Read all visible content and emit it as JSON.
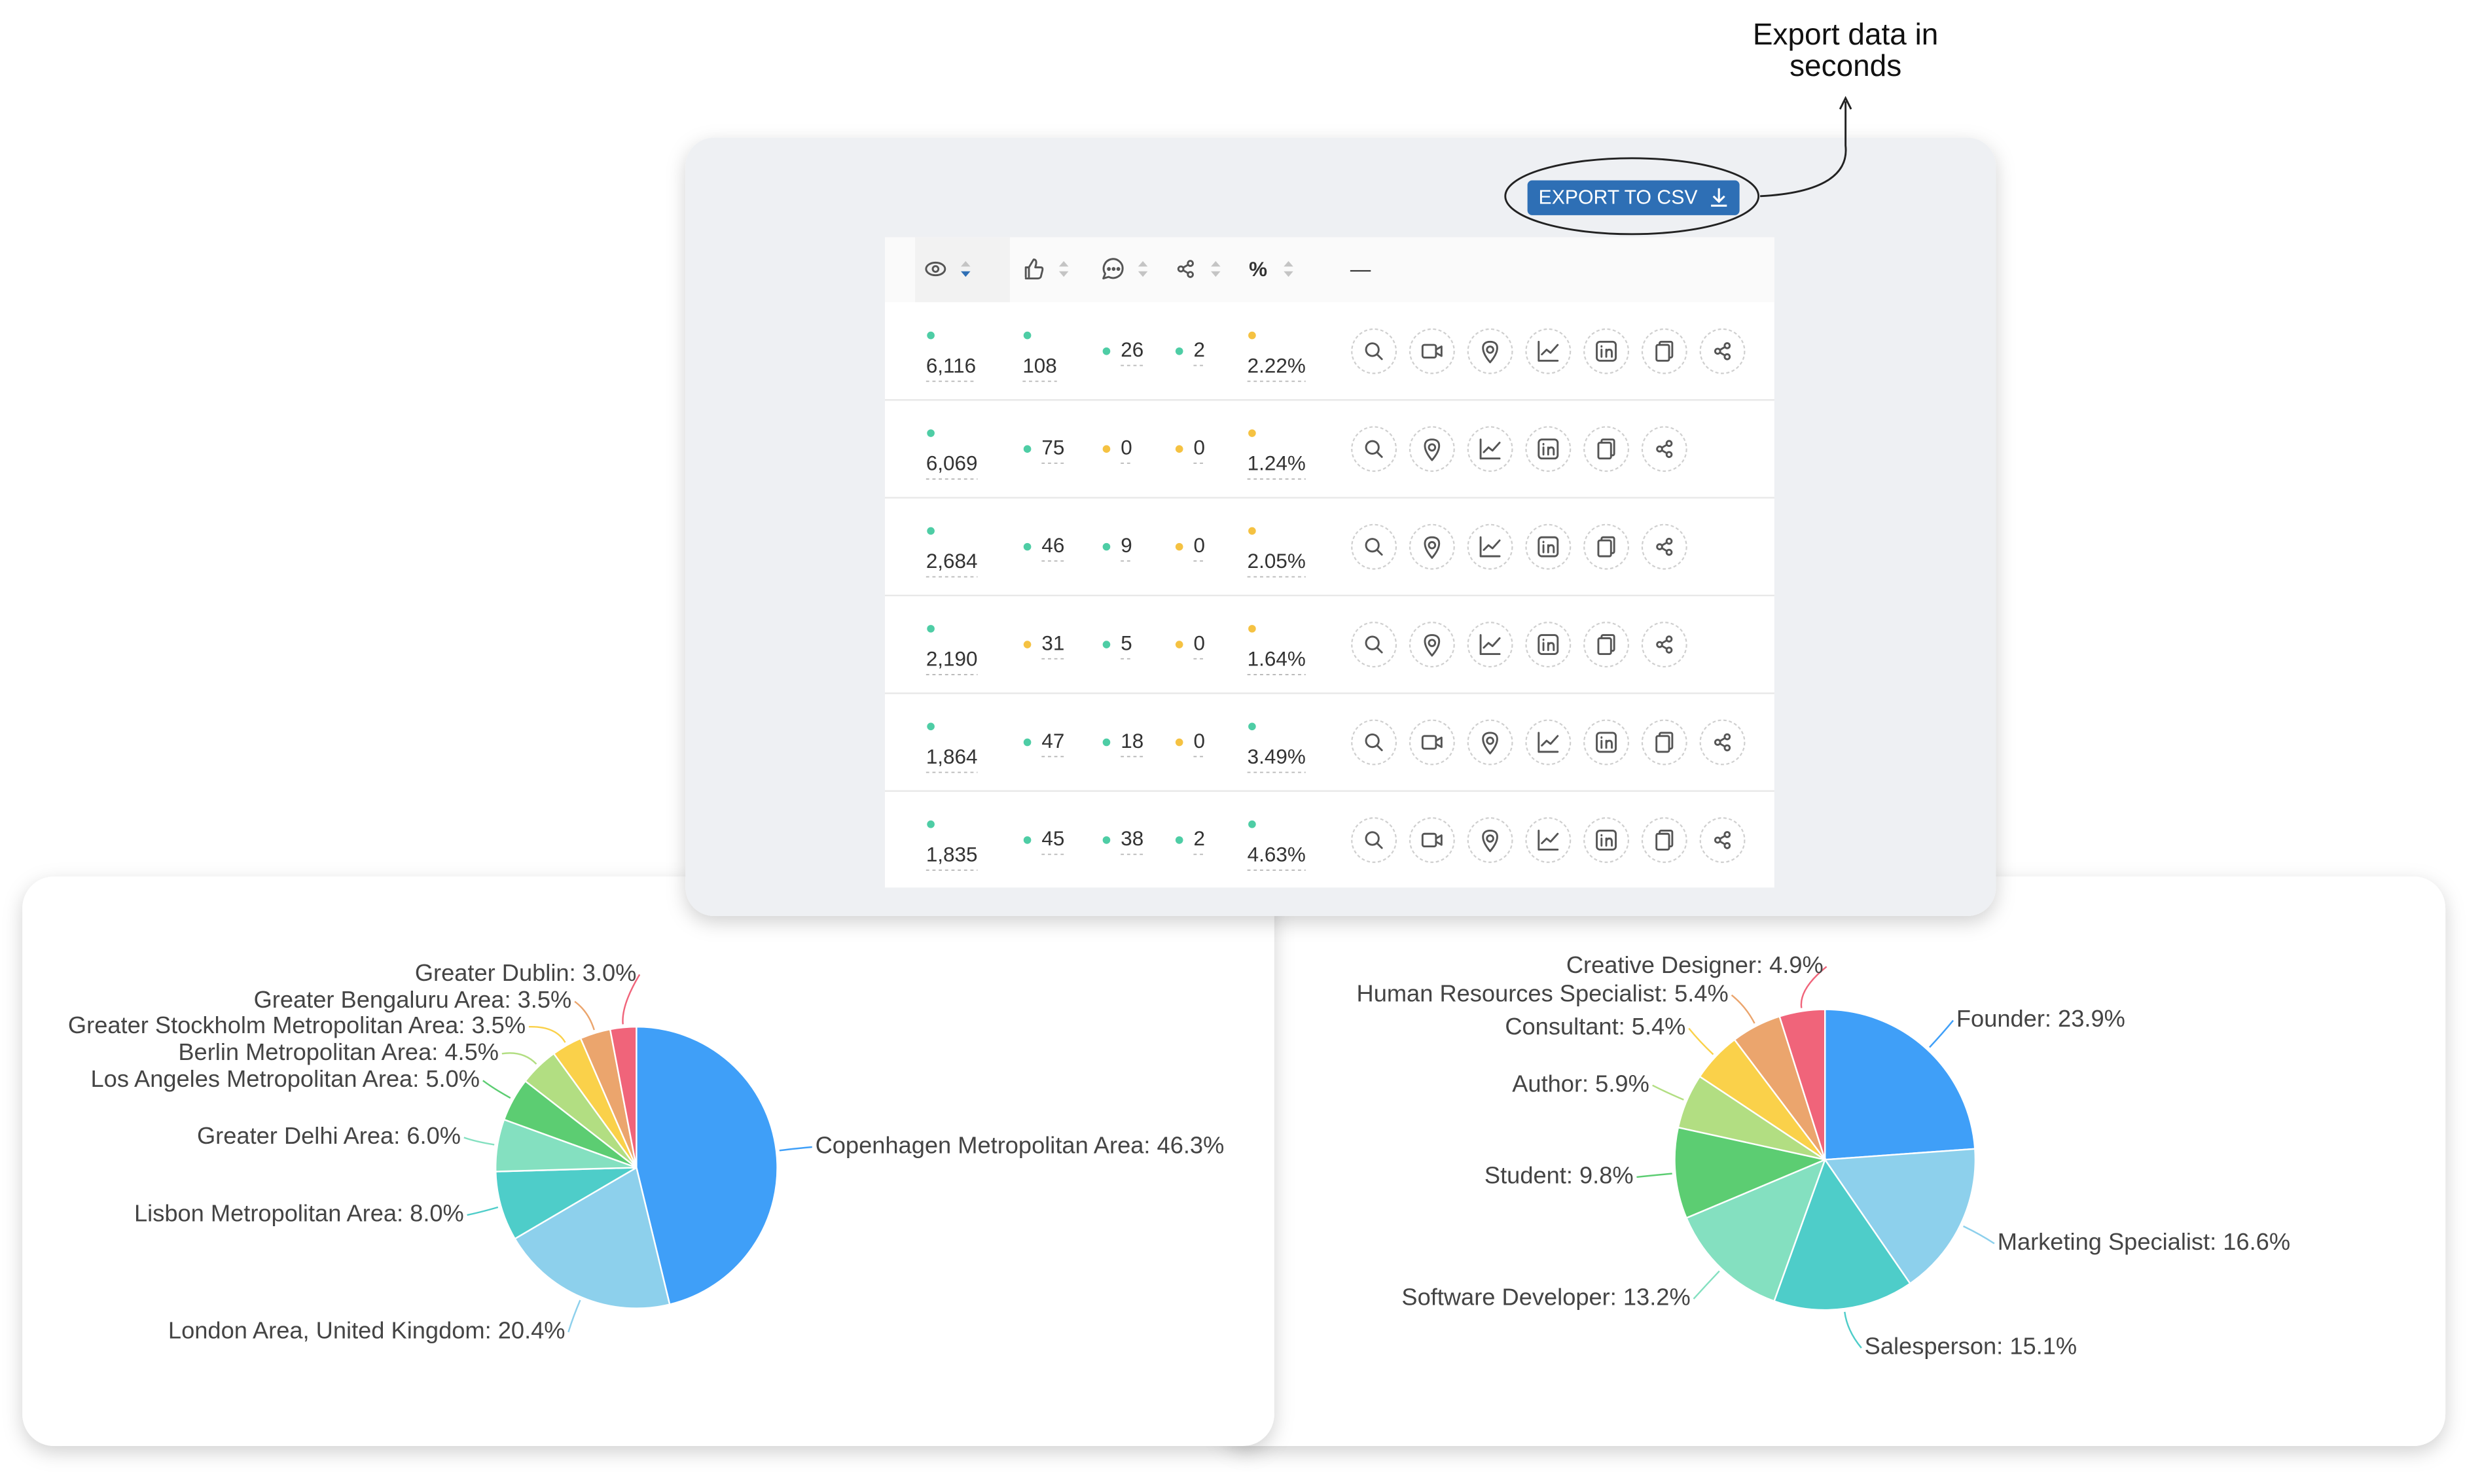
{
  "annotation": [
    "Export data in",
    "seconds"
  ],
  "panel": {
    "export_button": "EXPORT TO CSV",
    "headers": {
      "percent": "%",
      "actions": "—"
    },
    "rows": [
      {
        "video": true,
        "cells": [
          {
            "text": "6,116",
            "dot": "#4ecda5"
          },
          {
            "text": "108",
            "dot": "#4ecda5"
          },
          {
            "text": "26",
            "dot": "#4ecda5"
          },
          {
            "text": "2",
            "dot": "#4ecda5"
          },
          {
            "text": "2.22%",
            "dot": "#f5c242"
          }
        ]
      },
      {
        "video": false,
        "cells": [
          {
            "text": "6,069",
            "dot": "#4ecda5"
          },
          {
            "text": "75",
            "dot": "#4ecda5"
          },
          {
            "text": "0",
            "dot": "#f5c242"
          },
          {
            "text": "0",
            "dot": "#f5c242"
          },
          {
            "text": "1.24%",
            "dot": "#f5c242"
          }
        ]
      },
      {
        "video": false,
        "cells": [
          {
            "text": "2,684",
            "dot": "#4ecda5"
          },
          {
            "text": "46",
            "dot": "#4ecda5"
          },
          {
            "text": "9",
            "dot": "#4ecda5"
          },
          {
            "text": "0",
            "dot": "#f5c242"
          },
          {
            "text": "2.05%",
            "dot": "#f5c242"
          }
        ]
      },
      {
        "video": false,
        "cells": [
          {
            "text": "2,190",
            "dot": "#4ecda5"
          },
          {
            "text": "31",
            "dot": "#f5c242"
          },
          {
            "text": "5",
            "dot": "#4ecda5"
          },
          {
            "text": "0",
            "dot": "#f5c242"
          },
          {
            "text": "1.64%",
            "dot": "#f5c242"
          }
        ]
      },
      {
        "video": true,
        "cells": [
          {
            "text": "1,864",
            "dot": "#4ecda5"
          },
          {
            "text": "47",
            "dot": "#4ecda5"
          },
          {
            "text": "18",
            "dot": "#4ecda5"
          },
          {
            "text": "0",
            "dot": "#f5c242"
          },
          {
            "text": "3.49%",
            "dot": "#4ecda5"
          }
        ]
      },
      {
        "video": true,
        "cells": [
          {
            "text": "1,835",
            "dot": "#4ecda5"
          },
          {
            "text": "45",
            "dot": "#4ecda5"
          },
          {
            "text": "38",
            "dot": "#4ecda5"
          },
          {
            "text": "2",
            "dot": "#4ecda5"
          },
          {
            "text": "4.63%",
            "dot": "#4ecda5"
          }
        ]
      }
    ]
  },
  "chart_data": [
    {
      "type": "pie",
      "labels": [
        "Copenhagen Metropolitan Area: 46.3%",
        "London Area, United Kingdom: 20.4%",
        "Lisbon Metropolitan Area: 8.0%",
        "Greater Delhi Area: 6.0%",
        "Los Angeles Metropolitan Area: 5.0%",
        "Berlin Metropolitan Area: 4.5%",
        "Greater Stockholm Metropolitan Area: 3.5%",
        "Greater Bengaluru Area: 3.5%",
        "Greater Dublin: 3.0%"
      ],
      "values": [
        46.3,
        20.4,
        8.0,
        6.0,
        5.0,
        4.5,
        3.5,
        3.5,
        3.0
      ],
      "colors": [
        "#3f9ff8",
        "#8dd0ec",
        "#4ecdc9",
        "#84e0c0",
        "#5ccd72",
        "#b2de82",
        "#fad14a",
        "#eba56d",
        "#f0647a"
      ]
    },
    {
      "type": "pie",
      "labels": [
        "Founder: 23.9%",
        "Marketing Specialist: 16.6%",
        "Salesperson: 15.1%",
        "Software Developer: 13.2%",
        "Student: 9.8%",
        "Author: 5.9%",
        "Consultant: 5.4%",
        "Human Resources Specialist: 5.4%",
        "Creative Designer: 4.9%"
      ],
      "values": [
        23.9,
        16.6,
        15.1,
        13.2,
        9.8,
        5.9,
        5.4,
        5.4,
        4.9
      ],
      "colors": [
        "#3f9ff8",
        "#8dd0ec",
        "#4ecdc9",
        "#84e0c0",
        "#5ccd72",
        "#b2de82",
        "#fad14a",
        "#eba56d",
        "#f0647a"
      ]
    }
  ]
}
